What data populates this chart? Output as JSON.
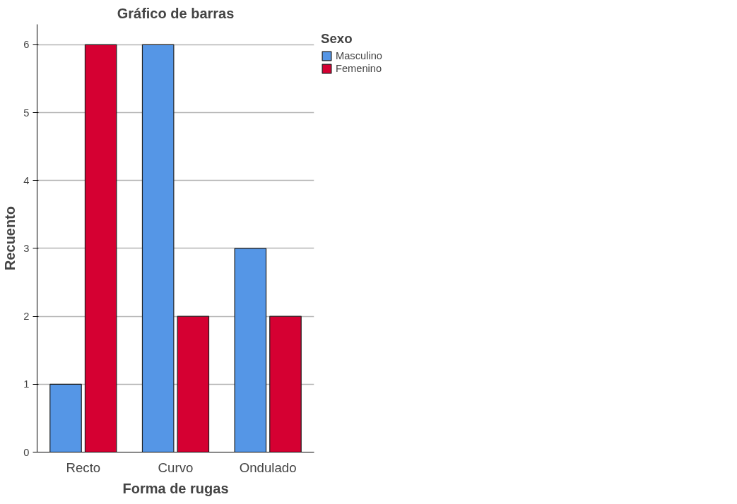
{
  "chart_data": {
    "type": "bar",
    "title": "Gráfico de barras",
    "xlabel": "Forma de rugas",
    "ylabel": "Recuento",
    "legend_title": "Sexo",
    "categories": [
      "Recto",
      "Curvo",
      "Ondulado"
    ],
    "series": [
      {
        "name": "Masculino",
        "color": "#5596e6",
        "values": [
          1,
          6,
          3
        ]
      },
      {
        "name": "Femenino",
        "color": "#d50032",
        "values": [
          6,
          2,
          2
        ]
      }
    ],
    "ylim": [
      0,
      6.3
    ],
    "yticks": [
      0,
      1,
      2,
      3,
      4,
      5,
      6
    ],
    "grid": "y",
    "legend": "top right"
  }
}
